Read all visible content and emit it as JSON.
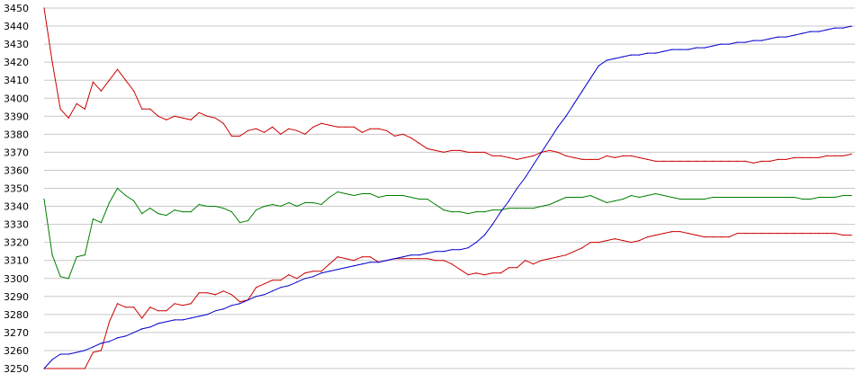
{
  "chart_data": {
    "type": "line",
    "title": "",
    "xlabel": "",
    "ylabel": "",
    "ylim": [
      3250,
      3450
    ],
    "y_ticks": [
      "3250",
      "3260",
      "3270",
      "3280",
      "3290",
      "3300",
      "3310",
      "3320",
      "3330",
      "3340",
      "3350",
      "3360",
      "3370",
      "3380",
      "3390",
      "3400",
      "3410",
      "3420",
      "3430",
      "3440",
      "3450"
    ],
    "grid": true,
    "colors": {
      "grid": "#c8c8c8",
      "background": "#ffffff"
    },
    "series": [
      {
        "color": "#cc0000",
        "x": [
          0,
          2,
          4,
          6,
          8,
          10,
          12,
          14,
          16,
          18,
          20,
          22,
          24,
          26,
          28,
          30,
          32,
          34,
          36,
          38,
          40,
          42,
          44,
          46,
          48,
          50,
          52,
          54,
          56,
          58,
          60,
          62,
          64,
          66,
          68,
          70,
          72,
          74,
          76,
          78,
          80,
          82,
          84,
          86,
          88,
          90,
          92,
          94,
          96,
          98,
          100,
          102,
          104,
          106,
          108,
          110,
          112,
          114,
          116,
          118,
          120,
          122,
          124,
          126,
          128,
          130,
          132,
          134,
          136,
          138,
          140,
          142,
          144,
          146,
          148,
          150,
          152,
          154,
          156,
          158,
          160,
          162,
          164,
          166,
          168,
          170,
          172,
          174,
          176,
          178,
          180,
          182,
          184,
          186,
          188,
          190,
          192,
          194,
          196,
          198
        ],
        "values": [
          3450,
          3420,
          3394,
          3389,
          3397,
          3394,
          3409,
          3404,
          3410,
          3416,
          3410,
          3404,
          3394,
          3394,
          3390,
          3388,
          3390,
          3389,
          3388,
          3392,
          3390,
          3389,
          3386,
          3379,
          3379,
          3382,
          3383,
          3381,
          3384,
          3380,
          3383,
          3382,
          3380,
          3384,
          3386,
          3385,
          3384,
          3384,
          3384,
          3381,
          3383,
          3383,
          3382,
          3379,
          3380,
          3378,
          3375,
          3372,
          3371,
          3370,
          3371,
          3371,
          3370,
          3370,
          3370,
          3368,
          3368,
          3367,
          3366,
          3367,
          3368,
          3370,
          3371,
          3370,
          3368,
          3367,
          3366,
          3366,
          3366,
          3368,
          3367,
          3368,
          3368,
          3367,
          3366,
          3365,
          3365,
          3365,
          3365,
          3365,
          3365,
          3365,
          3365,
          3365,
          3365,
          3365,
          3365,
          3364,
          3365,
          3365,
          3366,
          3366,
          3367,
          3367,
          3367,
          3367,
          3368,
          3368,
          3368,
          3369
        ]
      },
      {
        "color": "#008000",
        "x": [
          0,
          2,
          4,
          6,
          8,
          10,
          12,
          14,
          16,
          18,
          20,
          22,
          24,
          26,
          28,
          30,
          32,
          34,
          36,
          38,
          40,
          42,
          44,
          46,
          48,
          50,
          52,
          54,
          56,
          58,
          60,
          62,
          64,
          66,
          68,
          70,
          72,
          74,
          76,
          78,
          80,
          82,
          84,
          86,
          88,
          90,
          92,
          94,
          96,
          98,
          100,
          102,
          104,
          106,
          108,
          110,
          112,
          114,
          116,
          118,
          120,
          122,
          124,
          126,
          128,
          130,
          132,
          134,
          136,
          138,
          140,
          142,
          144,
          146,
          148,
          150,
          152,
          154,
          156,
          158,
          160,
          162,
          164,
          166,
          168,
          170,
          172,
          174,
          176,
          178,
          180,
          182,
          184,
          186,
          188,
          190,
          192,
          194,
          196,
          198
        ],
        "values": [
          3344,
          3313,
          3301,
          3300,
          3312,
          3313,
          3333,
          3331,
          3342,
          3350,
          3346,
          3343,
          3336,
          3339,
          3336,
          3335,
          3338,
          3337,
          3337,
          3341,
          3340,
          3340,
          3339,
          3337,
          3331,
          3332,
          3338,
          3340,
          3341,
          3340,
          3342,
          3340,
          3342,
          3342,
          3341,
          3345,
          3348,
          3347,
          3346,
          3347,
          3347,
          3345,
          3346,
          3346,
          3346,
          3345,
          3344,
          3344,
          3341,
          3338,
          3337,
          3337,
          3336,
          3337,
          3337,
          3338,
          3338,
          3339,
          3339,
          3339,
          3339,
          3340,
          3341,
          3343,
          3345,
          3345,
          3345,
          3346,
          3344,
          3342,
          3343,
          3344,
          3346,
          3345,
          3346,
          3347,
          3346,
          3345,
          3344,
          3344,
          3344,
          3344,
          3345,
          3345,
          3345,
          3345,
          3345,
          3345,
          3345,
          3345,
          3345,
          3345,
          3345,
          3344,
          3344,
          3345,
          3345,
          3345,
          3346,
          3346
        ]
      },
      {
        "color": "#cc0000",
        "x": [
          0,
          2,
          4,
          6,
          8,
          10,
          12,
          14,
          16,
          18,
          20,
          22,
          24,
          26,
          28,
          30,
          32,
          34,
          36,
          38,
          40,
          42,
          44,
          46,
          48,
          50,
          52,
          54,
          56,
          58,
          60,
          62,
          64,
          66,
          68,
          70,
          72,
          74,
          76,
          78,
          80,
          82,
          84,
          86,
          88,
          90,
          92,
          94,
          96,
          98,
          100,
          102,
          104,
          106,
          108,
          110,
          112,
          114,
          116,
          118,
          120,
          122,
          124,
          126,
          128,
          130,
          132,
          134,
          136,
          138,
          140,
          142,
          144,
          146,
          148,
          150,
          152,
          154,
          156,
          158,
          160,
          162,
          164,
          166,
          168,
          170,
          172,
          174,
          176,
          178,
          180,
          182,
          184,
          186,
          188,
          190,
          192,
          194,
          196,
          198
        ],
        "values": [
          3250,
          3250,
          3250,
          3250,
          3250,
          3250,
          3259,
          3260,
          3276,
          3286,
          3284,
          3284,
          3278,
          3284,
          3282,
          3282,
          3286,
          3285,
          3286,
          3292,
          3292,
          3291,
          3293,
          3291,
          3287,
          3288,
          3295,
          3297,
          3299,
          3299,
          3302,
          3300,
          3303,
          3304,
          3304,
          3308,
          3312,
          3311,
          3310,
          3312,
          3312,
          3309,
          3310,
          3311,
          3311,
          3311,
          3311,
          3311,
          3310,
          3310,
          3308,
          3305,
          3302,
          3303,
          3302,
          3303,
          3303,
          3306,
          3306,
          3310,
          3308,
          3310,
          3311,
          3312,
          3313,
          3315,
          3317,
          3320,
          3320,
          3321,
          3322,
          3321,
          3320,
          3321,
          3323,
          3324,
          3325,
          3326,
          3326,
          3325,
          3324,
          3323,
          3323,
          3323,
          3323,
          3325,
          3325,
          3325,
          3325,
          3325,
          3325,
          3325,
          3325,
          3325,
          3325,
          3325,
          3325,
          3325,
          3324,
          3324
        ]
      },
      {
        "color": "#0000cc",
        "x": [
          0,
          2,
          4,
          6,
          8,
          10,
          12,
          14,
          16,
          18,
          20,
          22,
          24,
          26,
          28,
          30,
          32,
          34,
          36,
          38,
          40,
          42,
          44,
          46,
          48,
          50,
          52,
          54,
          56,
          58,
          60,
          62,
          64,
          66,
          68,
          70,
          72,
          74,
          76,
          78,
          80,
          82,
          84,
          86,
          88,
          90,
          92,
          94,
          96,
          98,
          100,
          102,
          104,
          106,
          108,
          110,
          112,
          114,
          116,
          118,
          120,
          122,
          124,
          126,
          128,
          130,
          132,
          134,
          136,
          138,
          140,
          142,
          144,
          146,
          148,
          150,
          152,
          154,
          156,
          158,
          160,
          162,
          164,
          166,
          168,
          170,
          172,
          174,
          176,
          178,
          180,
          182,
          184,
          186,
          188,
          190,
          192,
          194,
          196,
          198
        ],
        "values": [
          3250,
          3255,
          3258,
          3258,
          3259,
          3260,
          3262,
          3264,
          3265,
          3267,
          3268,
          3270,
          3272,
          3273,
          3275,
          3276,
          3277,
          3277,
          3278,
          3279,
          3280,
          3282,
          3283,
          3285,
          3286,
          3288,
          3290,
          3291,
          3293,
          3295,
          3296,
          3298,
          3300,
          3301,
          3303,
          3304,
          3305,
          3306,
          3307,
          3308,
          3309,
          3309,
          3310,
          3311,
          3312,
          3313,
          3313,
          3314,
          3315,
          3315,
          3316,
          3316,
          3317,
          3320,
          3324,
          3330,
          3337,
          3343,
          3350,
          3356,
          3363,
          3370,
          3377,
          3384,
          3390,
          3397,
          3404,
          3411,
          3418,
          3421,
          3422,
          3423,
          3424,
          3424,
          3425,
          3425,
          3426,
          3427,
          3427,
          3427,
          3428,
          3428,
          3429,
          3430,
          3430,
          3431,
          3431,
          3432,
          3432,
          3433,
          3434,
          3434,
          3435,
          3436,
          3437,
          3437,
          3438,
          3439,
          3439,
          3440
        ]
      }
    ]
  }
}
